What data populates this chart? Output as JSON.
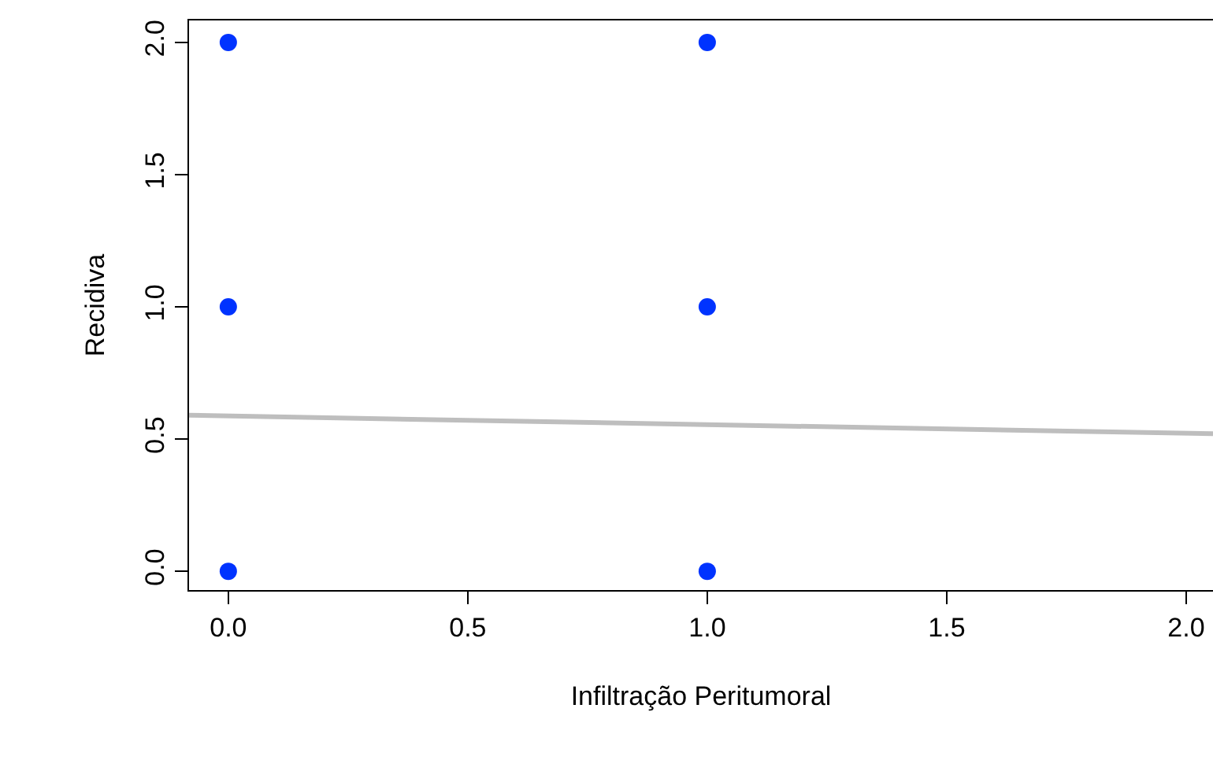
{
  "chart_data": {
    "type": "scatter",
    "xlabel": "Infiltração Peritumoral",
    "ylabel": "Recidiva",
    "xlim": [
      -0.082,
      2.056
    ],
    "ylim": [
      -0.071,
      2.083
    ],
    "xticks": [
      {
        "value": 0,
        "label": "0.0"
      },
      {
        "value": 0.5,
        "label": "0.5"
      },
      {
        "value": 1,
        "label": "1.0"
      },
      {
        "value": 1.5,
        "label": "1.5"
      },
      {
        "value": 2,
        "label": "2.0"
      }
    ],
    "yticks": [
      {
        "value": 0,
        "label": "0.0"
      },
      {
        "value": 0.5,
        "label": "0.5"
      },
      {
        "value": 1,
        "label": "1.0"
      },
      {
        "value": 1.5,
        "label": "1.5"
      },
      {
        "value": 2,
        "label": "2.0"
      }
    ],
    "grid": false,
    "legend": false,
    "marker": "circle",
    "series": [
      {
        "type": "line",
        "color": "#bebebe",
        "marker": "none",
        "x": [
          -0.082,
          2.056
        ],
        "values": [
          0.59,
          0.52
        ]
      },
      {
        "color": "#0033ff",
        "x": [
          0,
          0,
          0,
          1,
          1,
          1
        ],
        "values": [
          0,
          1,
          2,
          0,
          1,
          2
        ]
      }
    ]
  }
}
